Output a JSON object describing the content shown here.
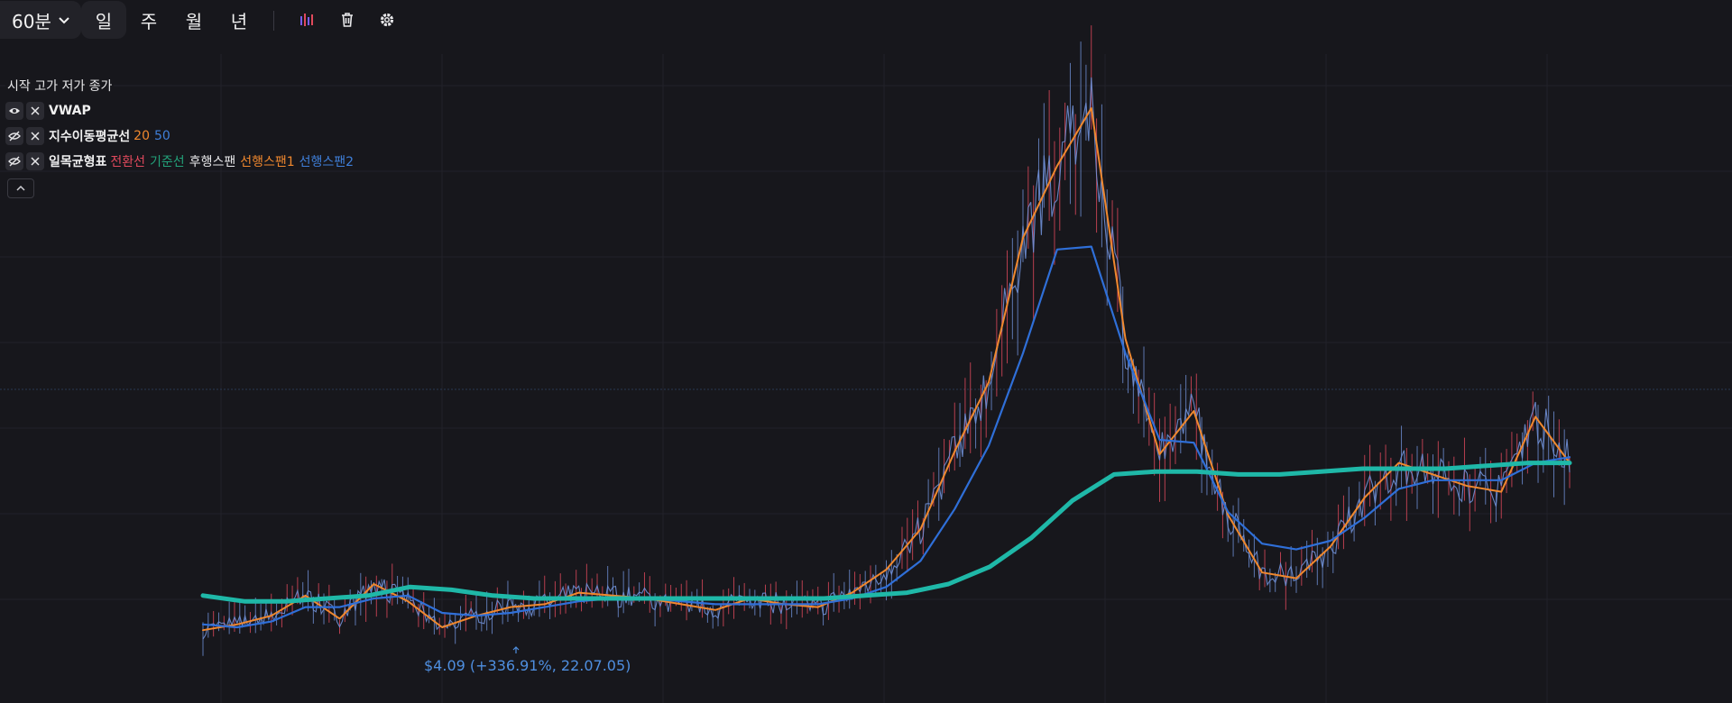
{
  "toolbar": {
    "interval": "60분",
    "timeframes": [
      "일",
      "주",
      "월",
      "년"
    ],
    "active_timeframe": "일",
    "icons": [
      "indicators-icon",
      "trash-icon",
      "gear-icon"
    ]
  },
  "legend": {
    "ohlc_labels": [
      "시작",
      "고가",
      "저가",
      "종가"
    ],
    "indicators": [
      {
        "name": "VWAP",
        "params": [],
        "visible": true
      },
      {
        "name": "지수이동평균선",
        "visible": false,
        "params": [
          {
            "text": "20",
            "color": "#f0882e"
          },
          {
            "text": "50",
            "color": "#3f7fd9"
          }
        ]
      },
      {
        "name": "일목균형표",
        "visible": false,
        "params": [
          {
            "text": "전환선",
            "color": "#e0495c"
          },
          {
            "text": "기준선",
            "color": "#23a27a"
          },
          {
            "text": "후행스팬",
            "color": "#e8e8ea"
          },
          {
            "text": "선행스팬1",
            "color": "#f0882e"
          },
          {
            "text": "선행스팬2",
            "color": "#3f7fd9"
          }
        ]
      }
    ]
  },
  "annotation": {
    "low_label": "$4.09 (+336.91%, 22.07.05)"
  },
  "colors": {
    "background": "#17171c",
    "grid": "#22222a",
    "price": "#6f8fd6",
    "candle_up": "#e0495c",
    "ema20": "#f0882e",
    "ema50": "#2f6fd8",
    "vwap": "#1fb8a8"
  },
  "chart_data": {
    "type": "line",
    "series": [
      {
        "name": "EMA 20",
        "values": [
          4.4,
          4.6,
          4.9,
          5.6,
          4.8,
          6.0,
          5.4,
          4.5,
          4.9,
          5.2,
          5.3,
          5.7,
          5.6,
          5.5,
          5.3,
          5.1,
          5.5,
          5.3,
          5.2,
          5.7,
          6.5,
          7.9,
          10.6,
          13.0,
          18.0,
          20.5,
          22.5,
          14.5,
          10.5,
          12.0,
          8.4,
          6.4,
          6.2,
          7.3,
          9.0,
          10.2,
          9.8,
          9.4,
          9.2,
          11.8,
          10.2
        ]
      },
      {
        "name": "EMA 50",
        "values": [
          4.6,
          4.5,
          4.7,
          5.2,
          5.2,
          5.5,
          5.6,
          5.0,
          4.9,
          5.0,
          5.2,
          5.4,
          5.5,
          5.5,
          5.4,
          5.3,
          5.3,
          5.3,
          5.3,
          5.5,
          5.9,
          6.8,
          8.6,
          10.8,
          14.0,
          17.6,
          17.7,
          14.0,
          11.0,
          10.9,
          8.5,
          7.4,
          7.2,
          7.5,
          8.3,
          9.3,
          9.6,
          9.6,
          9.6,
          10.2,
          10.4
        ]
      },
      {
        "name": "VWAP",
        "values": [
          5.6,
          5.4,
          5.4,
          5.5,
          5.6,
          5.9,
          5.8,
          5.6,
          5.5,
          5.5,
          5.5,
          5.5,
          5.5,
          5.5,
          5.5,
          5.5,
          5.6,
          5.7,
          6.0,
          6.6,
          7.6,
          8.9,
          9.8,
          9.9,
          9.9,
          9.8,
          9.8,
          9.9,
          10.0,
          10.0,
          10.0,
          10.1,
          10.2,
          10.2
        ]
      }
    ]
  }
}
